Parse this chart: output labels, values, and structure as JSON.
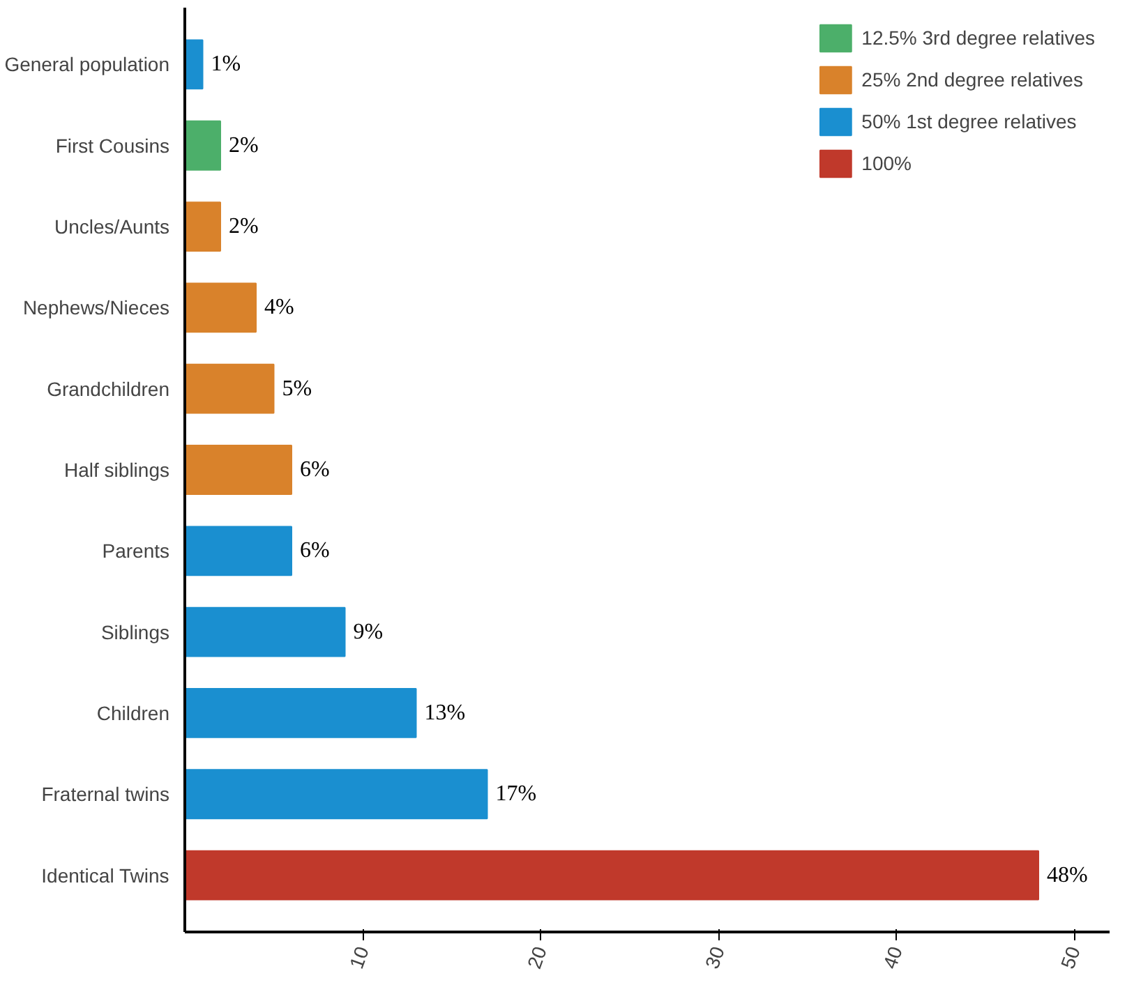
{
  "chart_data": {
    "type": "bar",
    "orientation": "horizontal",
    "categories": [
      "General population",
      "First Cousins",
      "Uncles/Aunts",
      "Nephews/Nieces",
      "Grandchildren",
      "Half siblings",
      "Parents",
      "Siblings",
      "Children",
      "Fraternal twins",
      "Identical Twins"
    ],
    "series": [
      {
        "name": "12.5% 3rd degree relatives",
        "color": "#4caf6a",
        "values": [
          null,
          2,
          null,
          null,
          null,
          null,
          null,
          null,
          null,
          null,
          null
        ],
        "value_labels": [
          null,
          "2%",
          null,
          null,
          null,
          null,
          null,
          null,
          null,
          null,
          null
        ]
      },
      {
        "name": "25% 2nd degree relatives",
        "color": "#d9822b",
        "values": [
          null,
          null,
          2,
          4,
          5,
          6,
          null,
          null,
          null,
          null,
          null
        ],
        "value_labels": [
          null,
          null,
          "2%",
          "4%",
          "5%",
          "6%",
          null,
          null,
          null,
          null,
          null
        ]
      },
      {
        "name": "50% 1st degree relatives",
        "color": "#1a8fd0",
        "values": [
          1,
          null,
          null,
          null,
          null,
          null,
          6,
          9,
          13,
          17,
          null
        ],
        "value_labels": [
          "1%",
          null,
          null,
          null,
          null,
          null,
          "6%",
          "9%",
          "13%",
          "17%",
          null
        ]
      },
      {
        "name": "100%",
        "color": "#c0392b",
        "values": [
          null,
          null,
          null,
          null,
          null,
          null,
          null,
          null,
          null,
          null,
          48
        ],
        "value_labels": [
          null,
          null,
          null,
          null,
          null,
          null,
          null,
          null,
          null,
          null,
          "48%"
        ]
      }
    ],
    "xlim": [
      0,
      52
    ],
    "xticks": [
      10,
      20,
      30,
      40,
      50
    ],
    "grid": false,
    "legend": "top right"
  }
}
